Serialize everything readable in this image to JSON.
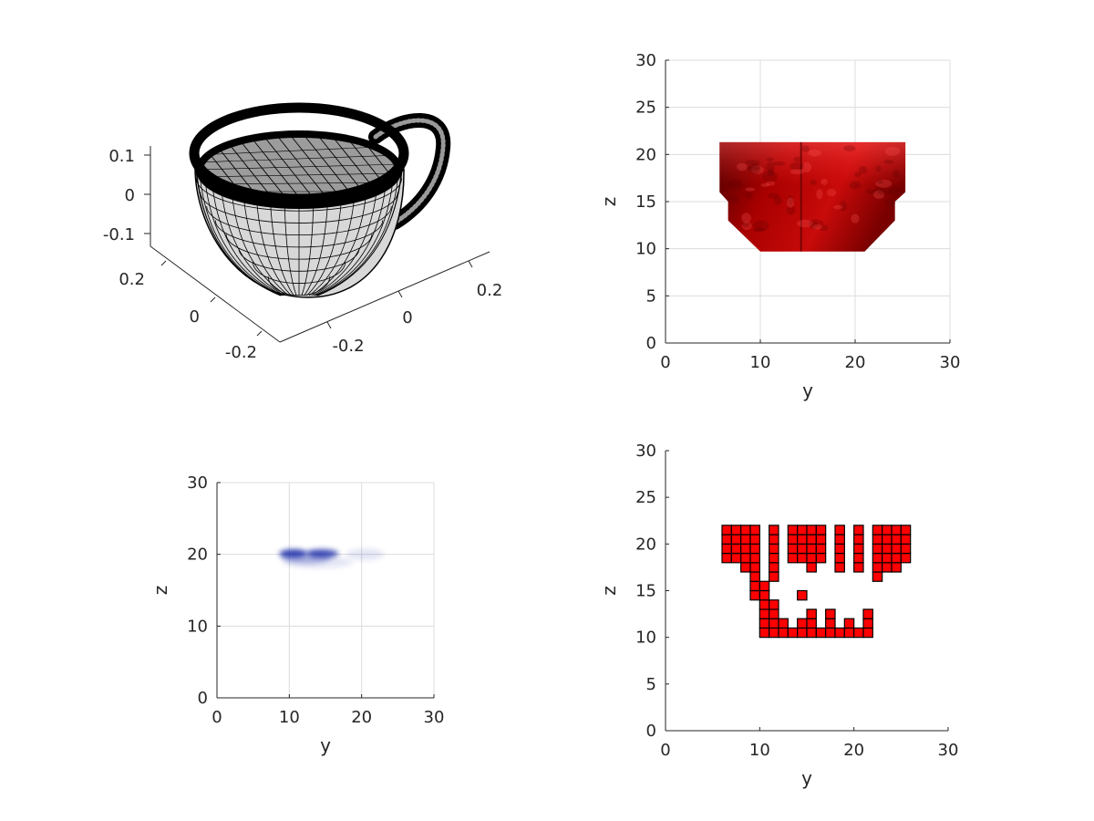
{
  "figure": {
    "background": "#ffffff",
    "axis_color": "#262626",
    "grid_color": "#dcdcdc"
  },
  "chart_data": [
    {
      "id": "mesh",
      "type": "surface-3d",
      "render": "wireframe mesh of a teacup (black edges, grey faces)",
      "face_color": "#a0a0a0",
      "edge_color": "#000000",
      "x_ticks": [
        -0.2,
        0,
        0.2
      ],
      "y_ticks": [
        -0.2,
        0,
        0.2
      ],
      "z_ticks": [
        -0.1,
        0,
        0.1
      ],
      "tick_labels": {
        "x": [
          "-0.2",
          "0",
          "0.2"
        ],
        "y": [
          "-0.2",
          "0",
          "0.2"
        ],
        "z": [
          "-0.1",
          "0",
          "0.1"
        ]
      },
      "grid": false
    },
    {
      "id": "iso",
      "type": "area",
      "render": "lit red isosurface projected on the y-z plane",
      "color": "#c00000",
      "xlabel": "y",
      "ylabel": "z",
      "xlim": [
        0,
        30
      ],
      "ylim": [
        0,
        30
      ],
      "x_ticks": [
        0,
        10,
        20,
        30
      ],
      "y_ticks": [
        0,
        5,
        10,
        15,
        20,
        25,
        30
      ],
      "grid": true,
      "outline": [
        [
          5.7,
          21.3
        ],
        [
          25.3,
          21.3
        ],
        [
          25.3,
          16
        ],
        [
          24.2,
          15
        ],
        [
          24.2,
          13
        ],
        [
          21,
          9.7
        ],
        [
          10,
          9.7
        ],
        [
          6.6,
          13
        ],
        [
          6.6,
          15
        ],
        [
          5.7,
          16
        ]
      ]
    },
    {
      "id": "density",
      "type": "heatmap",
      "render": "translucent blue volume rendering on the y-z plane",
      "color": "#1f2fa8",
      "xlabel": "y",
      "ylabel": "z",
      "xlim": [
        0,
        30
      ],
      "ylim": [
        0,
        30
      ],
      "x_ticks": [
        0,
        10,
        20,
        30
      ],
      "y_ticks": [
        0,
        10,
        20,
        30
      ],
      "grid": true,
      "blobs": [
        {
          "y": 10.5,
          "z": 20.1,
          "ry": 1.9,
          "rz": 0.6,
          "opacity": 0.85
        },
        {
          "y": 14.6,
          "z": 20.1,
          "ry": 2.2,
          "rz": 0.6,
          "opacity": 0.8
        },
        {
          "y": 12.3,
          "z": 19.6,
          "ry": 3.4,
          "rz": 0.9,
          "opacity": 0.3
        },
        {
          "y": 20.5,
          "z": 20.0,
          "ry": 2.6,
          "rz": 0.8,
          "opacity": 0.12
        },
        {
          "y": 14.0,
          "z": 18.9,
          "ry": 4.8,
          "rz": 0.8,
          "opacity": 0.12
        }
      ]
    },
    {
      "id": "voxels",
      "type": "heatmap",
      "render": "occupied voxels projected on the y-z plane",
      "color": "#ff0000",
      "edge_color": "#000000",
      "xlabel": "y",
      "ylabel": "z",
      "xlim": [
        0,
        30
      ],
      "ylim": [
        0,
        30
      ],
      "x_ticks": [
        0,
        10,
        20,
        30
      ],
      "y_ticks": [
        0,
        5,
        10,
        15,
        20,
        25,
        30
      ],
      "grid": false,
      "cell_size": 1,
      "columns": [
        {
          "y": 6,
          "z": [
            18,
            21
          ]
        },
        {
          "y": 7,
          "z": [
            18,
            21
          ]
        },
        {
          "y": 8,
          "z": [
            17,
            21
          ]
        },
        {
          "y": 9,
          "z": [
            14,
            21
          ]
        },
        {
          "y": 10,
          "z": [
            10,
            15
          ]
        },
        {
          "y": 11,
          "z": [
            10,
            13
          ]
        },
        {
          "y": 11,
          "z": [
            16,
            21
          ]
        },
        {
          "y": 12,
          "z": [
            10,
            11
          ]
        },
        {
          "y": 13,
          "z": [
            10,
            10
          ]
        },
        {
          "y": 13,
          "z": [
            18,
            21
          ]
        },
        {
          "y": 14,
          "z": [
            10,
            11
          ]
        },
        {
          "y": 14,
          "z": [
            14,
            14
          ]
        },
        {
          "y": 14,
          "z": [
            18,
            21
          ]
        },
        {
          "y": 15,
          "z": [
            10,
            12
          ]
        },
        {
          "y": 15,
          "z": [
            17,
            21
          ]
        },
        {
          "y": 16,
          "z": [
            10,
            10
          ]
        },
        {
          "y": 16,
          "z": [
            18,
            21
          ]
        },
        {
          "y": 17,
          "z": [
            10,
            12
          ]
        },
        {
          "y": 18,
          "z": [
            10,
            10
          ]
        },
        {
          "y": 18,
          "z": [
            17,
            21
          ]
        },
        {
          "y": 19,
          "z": [
            10,
            11
          ]
        },
        {
          "y": 20,
          "z": [
            10,
            10
          ]
        },
        {
          "y": 20,
          "z": [
            17,
            21
          ]
        },
        {
          "y": 21,
          "z": [
            10,
            12
          ]
        },
        {
          "y": 22,
          "z": [
            16,
            21
          ]
        },
        {
          "y": 23,
          "z": [
            17,
            21
          ]
        },
        {
          "y": 24,
          "z": [
            17,
            21
          ]
        },
        {
          "y": 25,
          "z": [
            18,
            21
          ]
        }
      ]
    }
  ]
}
